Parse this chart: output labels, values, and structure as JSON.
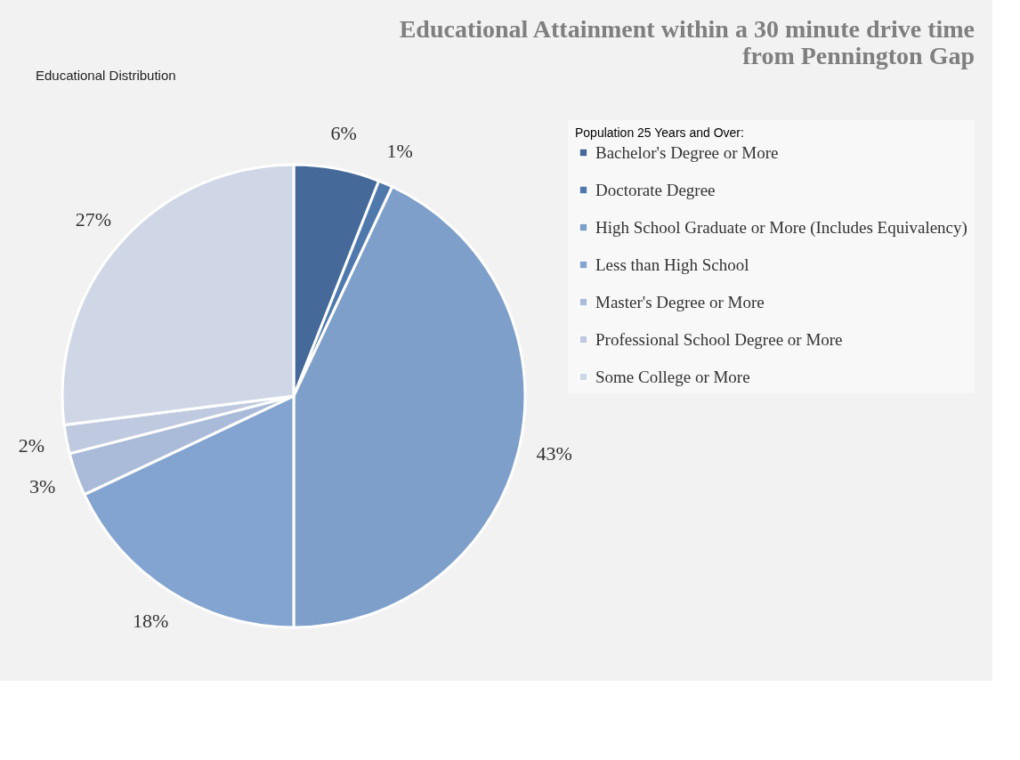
{
  "chart_data": {
    "type": "pie",
    "title": [
      "Educational Attainment within a 30 minute drive time",
      "from Pennington Gap"
    ],
    "legend_title": "Population 25 Years and Over:",
    "categories": [
      "Bachelor's Degree or More",
      "Doctorate Degree",
      "High School Graduate or More (Includes Equivalency)",
      "Less than High School",
      "Master's Degree or More",
      "Professional School Degree or More",
      "Some College or More"
    ],
    "values": [
      6,
      1,
      43,
      18,
      3,
      2,
      27
    ],
    "colors": [
      "#456a99",
      "#4f78ad",
      "#7e9fca",
      "#83a4d0",
      "#a9bbd9",
      "#bfcae0",
      "#cfd7e6"
    ],
    "value_labels": [
      "6%",
      "1%",
      "43%",
      "18%",
      "3%",
      "2%",
      "27%"
    ],
    "legend": "right",
    "annotations": [
      "Educational Distribution"
    ]
  }
}
